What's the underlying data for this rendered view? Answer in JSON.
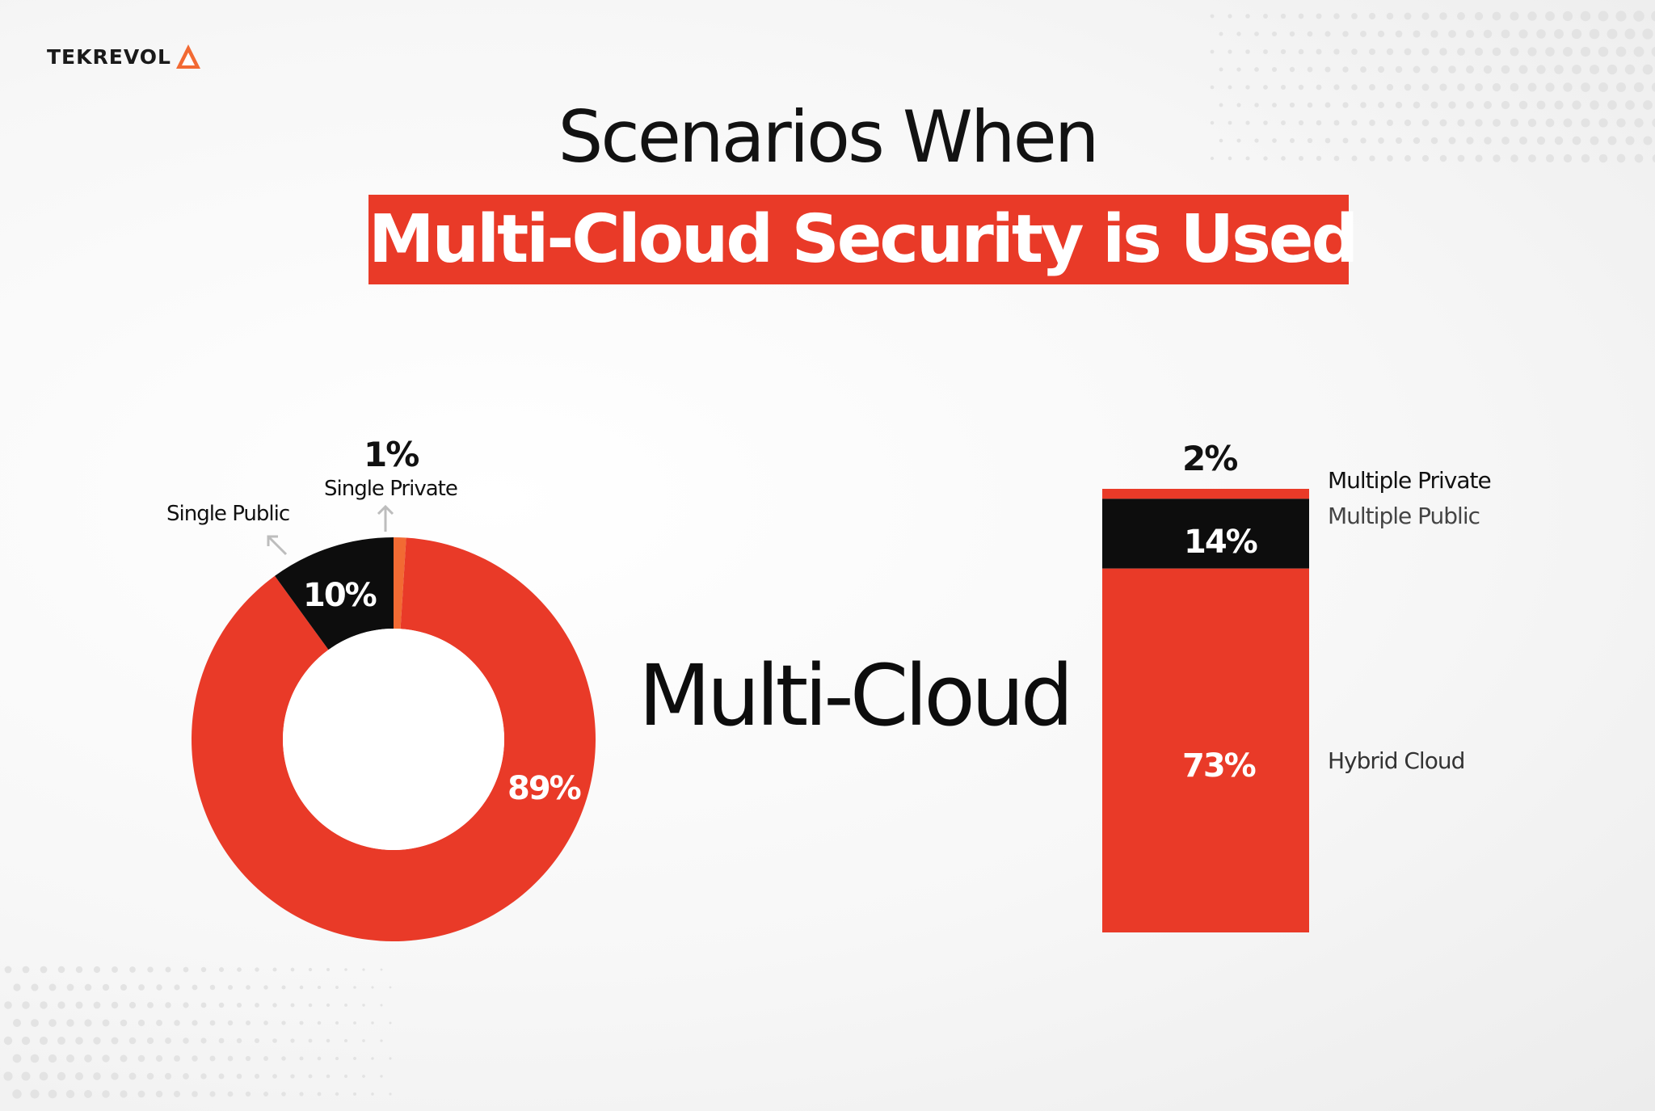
{
  "brand": {
    "name": "TEKREVOL"
  },
  "title": {
    "line1": "Scenarios When",
    "line2": "Multi-Cloud Security is Used"
  },
  "center_label": "Multi-Cloud",
  "colors": {
    "accent": "#e93a28",
    "dark": "#0d0d0d",
    "light_accent": "#f26a33"
  },
  "chart_data": [
    {
      "type": "pie",
      "variant": "donut",
      "slices": [
        {
          "label": "Single Private",
          "value": 1,
          "value_label": "1%",
          "color": "#f26a33"
        },
        {
          "label": "",
          "value": 89,
          "value_label": "89%",
          "color": "#e93a28"
        },
        {
          "label": "Single Public",
          "value": 10,
          "value_label": "10%",
          "color": "#0d0d0d"
        }
      ]
    },
    {
      "type": "bar",
      "variant": "stacked",
      "segments": [
        {
          "label": "Multiple Private",
          "value": 2,
          "value_label": "2%",
          "color": "#e93a28"
        },
        {
          "label": "Multiple Public",
          "value": 14,
          "value_label": "14%",
          "color": "#0d0d0d"
        },
        {
          "label": "Hybrid Cloud",
          "value": 73,
          "value_label": "73%",
          "color": "#e93a28"
        }
      ]
    }
  ]
}
